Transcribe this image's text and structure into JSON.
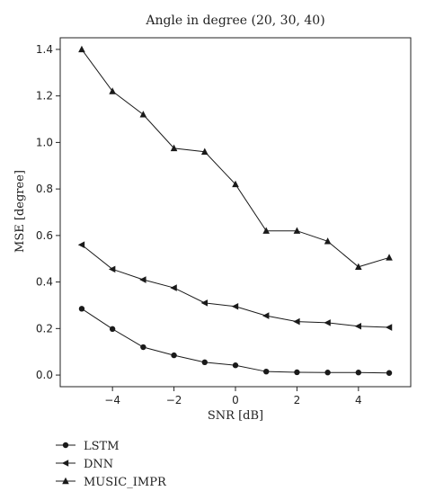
{
  "chart_data": {
    "type": "line",
    "title": "Angle in degree (20, 30, 40)",
    "xlabel": "SNR [dB]",
    "ylabel": "MSE [degree]",
    "xlim": [
      -5.7,
      5.7
    ],
    "ylim": [
      -0.05,
      1.45
    ],
    "xticks": [
      -4,
      -2,
      0,
      2,
      4
    ],
    "xtick_labels": [
      "−4",
      "−2",
      "0",
      "2",
      "4"
    ],
    "yticks": [
      0.0,
      0.2,
      0.4,
      0.6,
      0.8,
      1.0,
      1.2,
      1.4
    ],
    "ytick_labels": [
      "0.0",
      "0.2",
      "0.4",
      "0.6",
      "0.8",
      "1.0",
      "1.2",
      "1.4"
    ],
    "grid": false,
    "legend_position": "below",
    "x": [
      -5,
      -4,
      -3,
      -2,
      -1,
      0,
      1,
      2,
      3,
      4,
      5
    ],
    "series": [
      {
        "name": "LSTM",
        "marker": "circle",
        "color": "#1a1a1a",
        "values": [
          0.285,
          0.198,
          0.12,
          0.085,
          0.055,
          0.042,
          0.015,
          0.012,
          0.011,
          0.011,
          0.009
        ]
      },
      {
        "name": "DNN",
        "marker": "triangle-left",
        "color": "#1a1a1a",
        "values": [
          0.56,
          0.455,
          0.41,
          0.375,
          0.31,
          0.295,
          0.255,
          0.23,
          0.225,
          0.21,
          0.205
        ]
      },
      {
        "name": "MUSIC_IMPR",
        "marker": "triangle-up",
        "color": "#1a1a1a",
        "values": [
          1.4,
          1.22,
          1.12,
          0.975,
          0.96,
          0.82,
          0.62,
          0.62,
          0.575,
          0.465,
          0.505
        ]
      }
    ]
  }
}
